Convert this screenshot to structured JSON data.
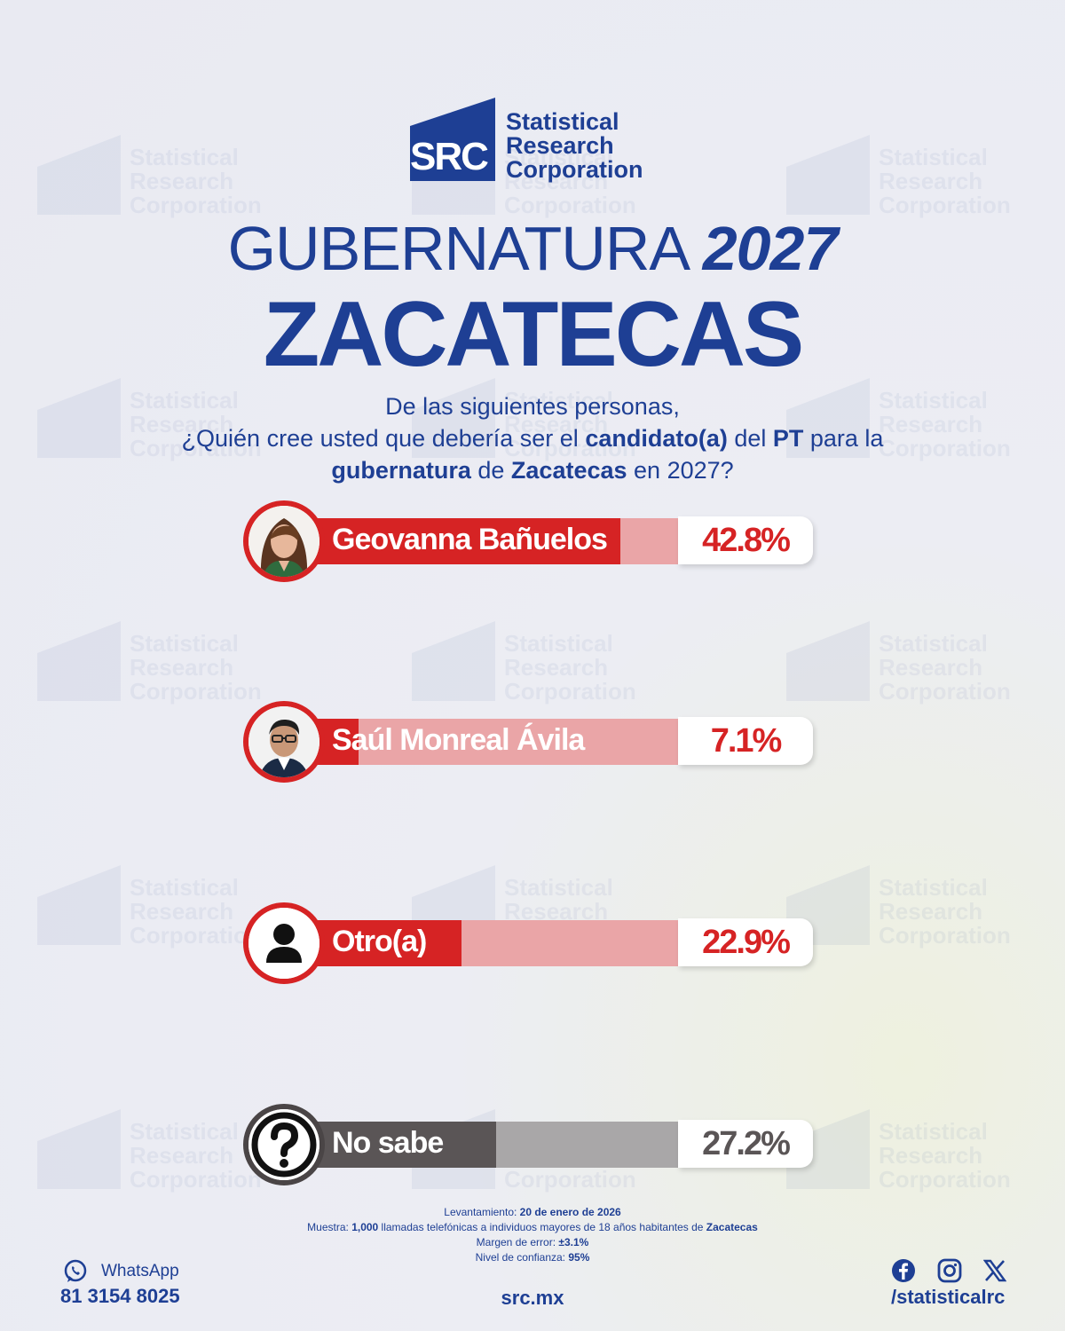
{
  "brand": {
    "logo_mark": "SRC",
    "logo_line1": "Statistical",
    "logo_line2": "Research",
    "logo_line3": "Corporation"
  },
  "header": {
    "title_light": "GUBERNATURA",
    "title_bold": "2027",
    "state": "ZACATECAS"
  },
  "question": {
    "line1": "De las siguientes personas,",
    "line2_a": "¿Quién cree usted que debería ser el ",
    "line2_b": "candidato(a)",
    "line2_c": " del ",
    "line2_d": "PT",
    "line2_e": " para la",
    "line3_a": "gubernatura",
    "line3_b": " de ",
    "line3_c": "Zacatecas",
    "line3_d": " en 2027?"
  },
  "chart_data": {
    "type": "bar",
    "orientation": "horizontal",
    "categories": [
      "Geovanna Bañuelos",
      "Saúl Monreal Ávila",
      "Otro(a)",
      "No sabe"
    ],
    "values": [
      42.8,
      7.1,
      22.9,
      27.2
    ],
    "value_labels": [
      "42.8%",
      "7.1%",
      "22.9%",
      "27.2%"
    ],
    "colors": [
      "#d62324",
      "#d62324",
      "#d62324",
      "#5a5556"
    ],
    "track_colors": [
      "#eaa5a7",
      "#eaa5a7",
      "#eaa5a7",
      "#a9a7a8"
    ],
    "avatar_icons": [
      "candidate-photo",
      "candidate-photo",
      "person-icon",
      "question-icon"
    ],
    "xlim": [
      0,
      100
    ]
  },
  "footnote": {
    "fieldwork_label": "Levantamiento: ",
    "fieldwork_value": "20 de enero de 2026",
    "sample_label": "Muestra: ",
    "sample_value": "1,000",
    "sample_text": " llamadas telefónicas a individuos mayores de 18 años habitantes de ",
    "sample_place": "Zacatecas",
    "margin_label": "Margen de error: ",
    "margin_value": "±3.1%",
    "confidence_label": "Nivel de confianza: ",
    "confidence_value": "95%"
  },
  "contact": {
    "whatsapp_label": "WhatsApp",
    "whatsapp_number": "81 3154 8025",
    "website": "src.mx",
    "social_handle": "/statisticalrc",
    "social_icons": [
      "facebook-icon",
      "instagram-icon",
      "x-icon"
    ]
  }
}
